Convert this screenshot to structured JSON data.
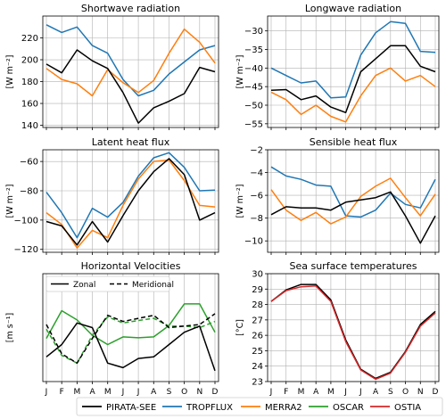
{
  "months": [
    "J",
    "F",
    "M",
    "A",
    "M",
    "J",
    "J",
    "A",
    "S",
    "O",
    "N",
    "D"
  ],
  "colors": {
    "PIRATA-SEE": "#000000",
    "TROPFLUX": "#1f77b4",
    "MERRA2": "#ff7f0e",
    "OSCAR": "#2ca02c",
    "OSTIA": "#d62728"
  },
  "legend": {
    "items": [
      {
        "label": "PIRATA-SEE",
        "color": "#000000"
      },
      {
        "label": "TROPFLUX",
        "color": "#1f77b4"
      },
      {
        "label": "MERRA2",
        "color": "#ff7f0e"
      },
      {
        "label": "OSCAR",
        "color": "#2ca02c"
      },
      {
        "label": "OSTIA",
        "color": "#d62728"
      }
    ]
  },
  "chart_data": [
    {
      "type": "line",
      "title": "Shortwave radiation",
      "ylabel": "[W m⁻²]",
      "ylim": [
        138,
        240
      ],
      "yticks": [
        140,
        160,
        180,
        200,
        220
      ],
      "show_xticklabels": false,
      "series": [
        {
          "name": "TROPFLUX",
          "color": "#1f77b4",
          "dash": false,
          "values": [
            232,
            225,
            230,
            213,
            206,
            182,
            167,
            172,
            187,
            198,
            209,
            213
          ]
        },
        {
          "name": "MERRA2",
          "color": "#ff7f0e",
          "dash": false,
          "values": [
            192,
            182,
            178,
            167,
            191,
            179,
            170,
            181,
            206,
            228,
            216,
            197
          ]
        },
        {
          "name": "PIRATA-SEE",
          "color": "#000000",
          "dash": false,
          "values": [
            196,
            188,
            209,
            199,
            192,
            170,
            142,
            156,
            162,
            169,
            193,
            189
          ]
        }
      ]
    },
    {
      "type": "line",
      "title": "Longwave radiation",
      "ylabel": "[W m⁻²]",
      "ylim": [
        -56,
        -26
      ],
      "yticks": [
        -55,
        -50,
        -45,
        -40,
        -35,
        -30
      ],
      "show_xticklabels": false,
      "series": [
        {
          "name": "TROPFLUX",
          "color": "#1f77b4",
          "dash": false,
          "values": [
            -40,
            -42,
            -44,
            -43.5,
            -48,
            -47.8,
            -36.5,
            -30.5,
            -27.5,
            -28,
            -35.5,
            -35.8
          ]
        },
        {
          "name": "MERRA2",
          "color": "#ff7f0e",
          "dash": false,
          "values": [
            -46.5,
            -48.5,
            -52.5,
            -50,
            -53,
            -54.5,
            -47.5,
            -42,
            -40,
            -43.5,
            -42,
            -45
          ]
        },
        {
          "name": "PIRATA-SEE",
          "color": "#000000",
          "dash": false,
          "values": [
            -46,
            -45.8,
            -48.5,
            -47.5,
            -50.5,
            -52,
            -41,
            -37.5,
            -34,
            -34,
            -39.5,
            -41
          ]
        }
      ]
    },
    {
      "type": "line",
      "title": "Latent heat flux",
      "ylabel": "[W m⁻²]",
      "ylim": [
        -122,
        -52
      ],
      "yticks": [
        -120,
        -100,
        -80,
        -60
      ],
      "show_xticklabels": false,
      "series": [
        {
          "name": "TROPFLUX",
          "color": "#1f77b4",
          "dash": false,
          "values": [
            -81,
            -95,
            -112,
            -92,
            -98,
            -88,
            -70,
            -57.5,
            -54,
            -64,
            -80,
            -79.5
          ]
        },
        {
          "name": "MERRA2",
          "color": "#ff7f0e",
          "dash": false,
          "values": [
            -95,
            -103,
            -119,
            -107,
            -112,
            -90,
            -72,
            -60,
            -59,
            -73,
            -90,
            -91
          ]
        },
        {
          "name": "PIRATA-SEE",
          "color": "#000000",
          "dash": false,
          "values": [
            -101,
            -104,
            -117,
            -101,
            -115,
            -97,
            -80,
            -67,
            -58,
            -69,
            -100,
            -95
          ]
        }
      ]
    },
    {
      "type": "line",
      "title": "Sensible heat flux",
      "ylabel": "[W m⁻²]",
      "ylim": [
        -11,
        -2
      ],
      "yticks": [
        -10,
        -8,
        -6,
        -4,
        -2
      ],
      "show_xticklabels": false,
      "series": [
        {
          "name": "TROPFLUX",
          "color": "#1f77b4",
          "dash": false,
          "values": [
            -3.5,
            -4.3,
            -4.6,
            -5.1,
            -5.2,
            -7.8,
            -7.9,
            -7.3,
            -5.8,
            -6.8,
            -7.1,
            -4.6
          ]
        },
        {
          "name": "MERRA2",
          "color": "#ff7f0e",
          "dash": false,
          "values": [
            -5.5,
            -7.3,
            -8.2,
            -7.5,
            -8.5,
            -7.9,
            -6.1,
            -5.2,
            -4.5,
            -6.2,
            -7.8,
            -5.9
          ]
        },
        {
          "name": "PIRATA-SEE",
          "color": "#000000",
          "dash": false,
          "values": [
            -7.7,
            -7.0,
            -7.1,
            -7.1,
            -7.3,
            -6.6,
            -6.4,
            -6.2,
            -5.7,
            -7.8,
            -10.2,
            -7.8
          ]
        }
      ]
    },
    {
      "type": "line",
      "title": "Horizontal Velocities",
      "ylabel": "[m s⁻¹]",
      "ylim": [
        -0.18,
        0.17
      ],
      "yticks": [],
      "show_xticklabels": true,
      "legend": {
        "position": "top-left",
        "items": [
          {
            "label": "Zonal",
            "dash": false
          },
          {
            "label": "Meridional",
            "dash": true
          }
        ]
      },
      "series": [
        {
          "name": "OSCAR",
          "color": "#2ca02c",
          "dash": false,
          "values": [
            -0.04,
            0.05,
            0.02,
            -0.03,
            -0.06,
            -0.035,
            -0.038,
            -0.035,
            0.002,
            0.072,
            0.072,
            -0.02
          ]
        },
        {
          "name": "OSCAR",
          "color": "#2ca02c",
          "dash": true,
          "values": [
            -0.01,
            -0.095,
            -0.12,
            -0.03,
            0.03,
            0.01,
            0.018,
            0.025,
            0.0,
            0.0,
            -0.005,
            0.015
          ]
        },
        {
          "name": "PIRATA-SEE",
          "color": "#000000",
          "dash": false,
          "values": [
            -0.1,
            -0.06,
            0.01,
            -0.005,
            -0.12,
            -0.135,
            -0.105,
            -0.1,
            -0.06,
            -0.02,
            0.0,
            -0.145
          ]
        },
        {
          "name": "PIRATA-SEE",
          "color": "#000000",
          "dash": true,
          "values": [
            0.005,
            -0.09,
            -0.12,
            -0.04,
            0.035,
            0.015,
            0.025,
            0.035,
            -0.005,
            0.0,
            0.005,
            0.04
          ]
        }
      ]
    },
    {
      "type": "line",
      "title": "Sea surface temperatures",
      "ylabel": "[°C]",
      "ylim": [
        23,
        30
      ],
      "yticks": [
        23,
        24,
        25,
        26,
        27,
        28,
        29,
        30
      ],
      "show_xticklabels": true,
      "series": [
        {
          "name": "PIRATA-SEE",
          "color": "#000000",
          "dash": false,
          "values": [
            28.2,
            28.95,
            29.3,
            29.3,
            28.3,
            25.7,
            23.8,
            23.2,
            23.6,
            24.95,
            26.7,
            27.55
          ]
        },
        {
          "name": "OSTIA",
          "color": "#d62728",
          "dash": false,
          "values": [
            28.2,
            28.9,
            29.15,
            29.2,
            28.2,
            25.6,
            23.75,
            23.15,
            23.55,
            24.9,
            26.6,
            27.45
          ]
        }
      ]
    }
  ]
}
